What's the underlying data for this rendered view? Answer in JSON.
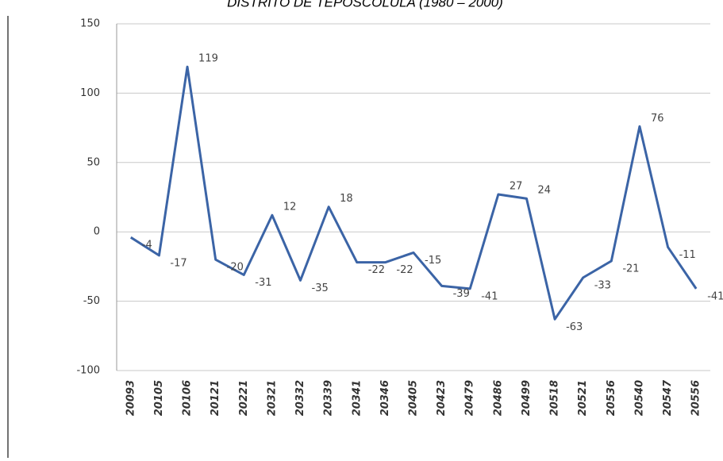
{
  "chart_data": {
    "type": "line",
    "title": "DISTRITO DE TEPOSCOLULA (1980 – 2000)",
    "categories": [
      "20093",
      "20105",
      "20106",
      "20121",
      "20221",
      "20321",
      "20332",
      "20339",
      "20341",
      "20346",
      "20405",
      "20423",
      "20479",
      "20486",
      "20499",
      "20518",
      "20521",
      "20536",
      "20540",
      "20547",
      "20556"
    ],
    "values": [
      -4,
      -17,
      119,
      -20,
      -31,
      12,
      -35,
      18,
      -22,
      -22,
      -15,
      -39,
      -41,
      27,
      24,
      -63,
      -33,
      -21,
      76,
      -11,
      -41
    ],
    "color": "#3b64a6",
    "ylim": [
      -100,
      150
    ],
    "yticks": [
      -100,
      -50,
      0,
      50,
      100,
      150
    ],
    "grid": true
  }
}
